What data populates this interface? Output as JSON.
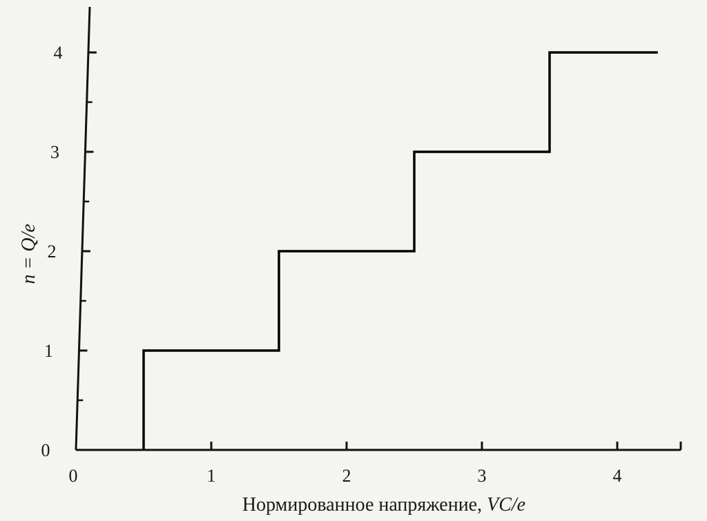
{
  "chart_data": {
    "type": "line",
    "step": true,
    "xlabel_text": "Нормированное напряжение, ",
    "xlabel_var": "VC/e",
    "ylabel": "n = Q/e",
    "xlim": [
      0,
      4.5
    ],
    "ylim": [
      0,
      4
    ],
    "x_ticks": [
      0,
      1,
      2,
      3,
      4
    ],
    "x_tick_labels": [
      "0",
      "1",
      "2",
      "3",
      "4"
    ],
    "y_ticks": [
      0,
      1,
      2,
      3,
      4
    ],
    "y_tick_labels": [
      "0",
      "1",
      "2",
      "3",
      "4"
    ],
    "y_minor_ticks": [
      0.5,
      1.5,
      2.5,
      3.5
    ],
    "grid": false,
    "series": [
      {
        "x": [
          0.5,
          0.5,
          1.5,
          1.5,
          2.5,
          2.5,
          3.5,
          3.5,
          4.3
        ],
        "y": [
          0,
          1,
          1,
          2,
          2,
          3,
          3,
          4,
          4
        ],
        "color": "#000000"
      }
    ]
  }
}
